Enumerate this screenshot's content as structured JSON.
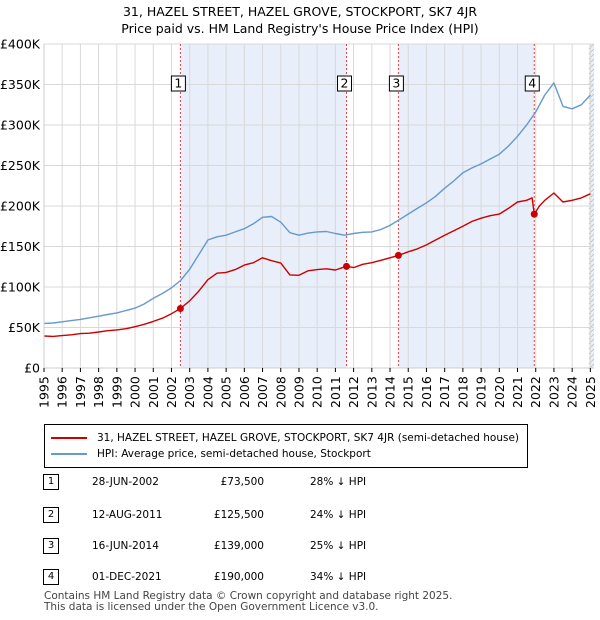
{
  "title_line1": "31, HAZEL STREET, HAZEL GROVE, STOCKPORT, SK7 4JR",
  "title_line2": "Price paid vs. HM Land Registry's House Price Index (HPI)",
  "chart_data": {
    "type": "line",
    "xlim": [
      1995.0,
      2025.2
    ],
    "ylim": [
      0,
      400000
    ],
    "y_ticks": [
      0,
      50000,
      100000,
      150000,
      200000,
      250000,
      300000,
      350000,
      400000
    ],
    "y_tick_labels": [
      "£0",
      "£50K",
      "£100K",
      "£150K",
      "£200K",
      "£250K",
      "£300K",
      "£350K",
      "£400K"
    ],
    "x_ticks": [
      1995,
      1996,
      1997,
      1998,
      1999,
      2000,
      2001,
      2002,
      2003,
      2004,
      2005,
      2006,
      2007,
      2008,
      2009,
      2010,
      2011,
      2012,
      2013,
      2014,
      2015,
      2016,
      2017,
      2018,
      2019,
      2020,
      2021,
      2022,
      2023,
      2024,
      2025
    ],
    "grid": true,
    "series": [
      {
        "name": "31, HAZEL STREET, HAZEL GROVE, STOCKPORT, SK7 4JR (semi-detached house)",
        "color": "#cc0000",
        "x": [
          1995.0,
          1995.5,
          1996.0,
          1996.5,
          1997.0,
          1997.5,
          1998.0,
          1998.5,
          1999.0,
          1999.5,
          2000.0,
          2000.5,
          2001.0,
          2001.5,
          2002.0,
          2002.49,
          2002.49,
          2003.0,
          2003.5,
          2004.0,
          2004.5,
          2005.0,
          2005.5,
          2006.0,
          2006.5,
          2007.0,
          2007.5,
          2008.0,
          2008.5,
          2009.0,
          2009.5,
          2010.0,
          2010.5,
          2011.0,
          2011.61,
          2011.61,
          2012.0,
          2012.5,
          2013.0,
          2013.5,
          2014.0,
          2014.46,
          2014.46,
          2015.0,
          2015.5,
          2016.0,
          2016.5,
          2017.0,
          2017.5,
          2018.0,
          2018.5,
          2019.0,
          2019.5,
          2020.0,
          2020.5,
          2021.0,
          2021.5,
          2021.8,
          2021.92,
          2021.92,
          2022.2,
          2022.5,
          2023.0,
          2023.5,
          2024.0,
          2024.5,
          2025.0
        ],
        "values": [
          39500,
          39000,
          40000,
          41000,
          42500,
          43000,
          44500,
          46000,
          47000,
          48500,
          51000,
          54000,
          57500,
          61500,
          67000,
          73500,
          73500,
          83000,
          95000,
          109000,
          117000,
          118000,
          121500,
          127000,
          130000,
          136000,
          132500,
          129500,
          115000,
          114500,
          120000,
          121500,
          122500,
          121000,
          125500,
          125500,
          124000,
          128000,
          130000,
          133000,
          136000,
          139000,
          139000,
          143500,
          147000,
          152000,
          158000,
          164000,
          169500,
          175000,
          181000,
          185000,
          188000,
          190000,
          197000,
          205000,
          207000,
          210000,
          190000,
          190000,
          200000,
          207000,
          216000,
          205000,
          207000,
          210000,
          215000
        ]
      },
      {
        "name": "HPI: Average price, semi-detached house, Stockport",
        "color": "#6699cc",
        "x": [
          1995.0,
          1995.5,
          1996.0,
          1996.5,
          1997.0,
          1997.5,
          1998.0,
          1998.5,
          1999.0,
          1999.5,
          2000.0,
          2000.5,
          2001.0,
          2001.5,
          2002.0,
          2002.5,
          2003.0,
          2003.5,
          2004.0,
          2004.5,
          2005.0,
          2005.5,
          2006.0,
          2006.5,
          2007.0,
          2007.5,
          2008.0,
          2008.5,
          2009.0,
          2009.5,
          2010.0,
          2010.5,
          2011.0,
          2011.5,
          2012.0,
          2012.5,
          2013.0,
          2013.5,
          2014.0,
          2014.5,
          2015.0,
          2015.5,
          2016.0,
          2016.5,
          2017.0,
          2017.5,
          2018.0,
          2018.5,
          2019.0,
          2019.5,
          2020.0,
          2020.5,
          2021.0,
          2021.5,
          2022.0,
          2022.5,
          2023.0,
          2023.5,
          2024.0,
          2024.5,
          2025.0
        ],
        "values": [
          55000,
          55500,
          57000,
          58500,
          60000,
          62000,
          64000,
          66000,
          68000,
          71000,
          74000,
          79000,
          86000,
          92000,
          99000,
          108000,
          122000,
          140000,
          158000,
          162000,
          164000,
          168000,
          172000,
          178000,
          186000,
          187000,
          180000,
          167000,
          164000,
          166500,
          168000,
          168500,
          166000,
          164000,
          166000,
          167500,
          168000,
          171000,
          176000,
          183000,
          190000,
          197000,
          204000,
          212000,
          222000,
          231000,
          241000,
          247000,
          252000,
          258000,
          264000,
          274000,
          286000,
          300000,
          316000,
          337000,
          352000,
          323000,
          320000,
          325000,
          337000
        ]
      }
    ],
    "sale_markers": [
      {
        "label": "1",
        "x": 2002.49,
        "value": 73500
      },
      {
        "label": "2",
        "x": 2011.61,
        "value": 125500
      },
      {
        "label": "3",
        "x": 2014.46,
        "value": 139000
      },
      {
        "label": "4",
        "x": 2021.92,
        "value": 190000
      }
    ],
    "shaded_regions": [
      [
        2002.49,
        2011.61
      ],
      [
        2014.46,
        2021.92
      ],
      [
        2024.92,
        2025.2
      ]
    ]
  },
  "legend": {
    "property": "31, HAZEL STREET, HAZEL GROVE, STOCKPORT, SK7 4JR (semi-detached house)",
    "hpi": "HPI: Average price, semi-detached house, Stockport"
  },
  "sales": [
    {
      "num": "1",
      "date": "28-JUN-2002",
      "price": "£73,500",
      "hpi": "28% ↓ HPI"
    },
    {
      "num": "2",
      "date": "12-AUG-2011",
      "price": "£125,500",
      "hpi": "24% ↓ HPI"
    },
    {
      "num": "3",
      "date": "16-JUN-2014",
      "price": "£139,000",
      "hpi": "25% ↓ HPI"
    },
    {
      "num": "4",
      "date": "01-DEC-2021",
      "price": "£190,000",
      "hpi": "34% ↓ HPI"
    }
  ],
  "footer_line1": "Contains HM Land Registry data © Crown copyright and database right 2025.",
  "footer_line2": "This data is licensed under the Open Government Licence v3.0."
}
